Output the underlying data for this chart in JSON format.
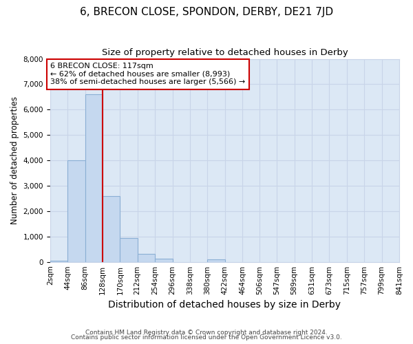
{
  "title": "6, BRECON CLOSE, SPONDON, DERBY, DE21 7JD",
  "subtitle": "Size of property relative to detached houses in Derby",
  "xlabel": "Distribution of detached houses by size in Derby",
  "ylabel": "Number of detached properties",
  "footnote1": "Contains HM Land Registry data © Crown copyright and database right 2024.",
  "footnote2": "Contains public sector information licensed under the Open Government Licence v3.0.",
  "annotation_line1": "6 BRECON CLOSE: 117sqm",
  "annotation_line2": "← 62% of detached houses are smaller (8,993)",
  "annotation_line3": "38% of semi-detached houses are larger (5,566) →",
  "bar_edges": [
    2,
    44,
    86,
    128,
    170,
    212,
    254,
    296,
    338,
    380,
    422,
    464,
    506,
    547,
    589,
    631,
    673,
    715,
    757,
    799,
    841
  ],
  "bar_heights": [
    50,
    4000,
    6600,
    2600,
    950,
    320,
    120,
    0,
    0,
    100,
    0,
    0,
    0,
    0,
    0,
    0,
    0,
    0,
    0,
    0
  ],
  "bar_color": "#c5d8ef",
  "bar_edge_color": "#8bafd4",
  "property_line_x": 128,
  "annotation_box_color": "#cc0000",
  "ylim": [
    0,
    8000
  ],
  "yticks": [
    0,
    1000,
    2000,
    3000,
    4000,
    5000,
    6000,
    7000,
    8000
  ],
  "grid_color": "#c8d4e8",
  "bg_color": "#dce8f5",
  "title_fontsize": 11,
  "subtitle_fontsize": 9.5,
  "xlabel_fontsize": 10,
  "ylabel_fontsize": 8.5,
  "tick_fontsize": 7.5,
  "annotation_fontsize": 8
}
